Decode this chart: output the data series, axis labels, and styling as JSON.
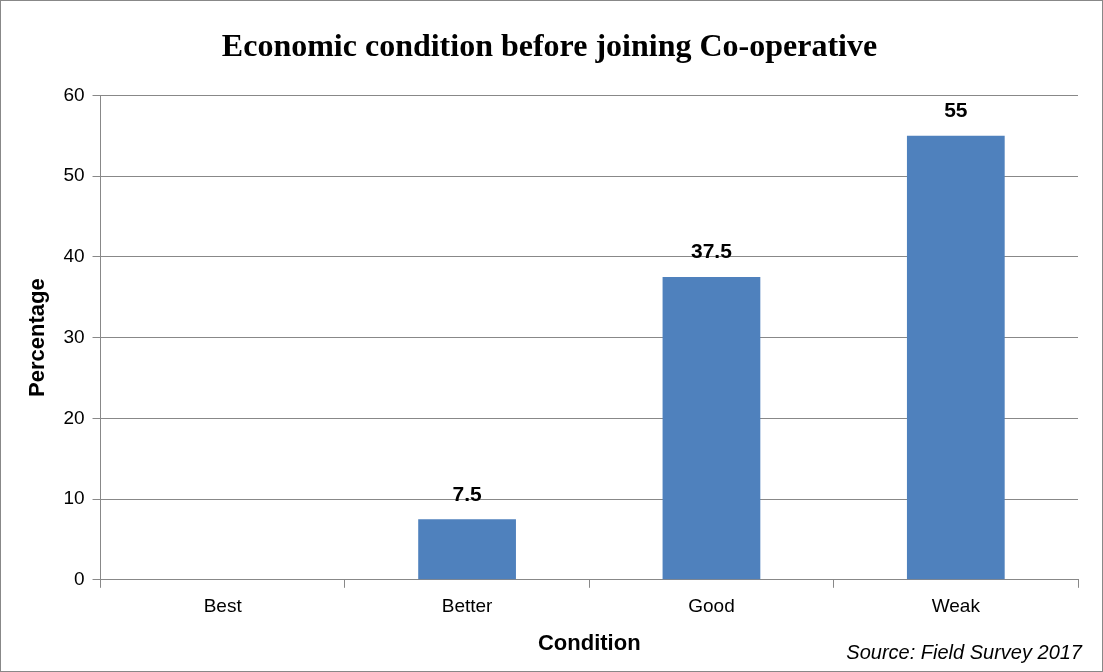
{
  "chart_data": {
    "type": "bar",
    "title": "Economic condition before joining Co-operative",
    "xlabel": "Condition",
    "ylabel": "Percentage",
    "categories": [
      "Best",
      "Better",
      "Good",
      "Weak"
    ],
    "values": [
      0,
      7.5,
      37.5,
      55
    ],
    "value_labels": [
      null,
      "7.5",
      "37.5",
      "55"
    ],
    "color": "#4f81bd",
    "ylim": [
      0,
      60
    ],
    "yticks": [
      0,
      10,
      20,
      30,
      40,
      50,
      60
    ],
    "grid": "y",
    "legend": false,
    "annotations": [
      "Source: Field Survey 2017"
    ]
  }
}
